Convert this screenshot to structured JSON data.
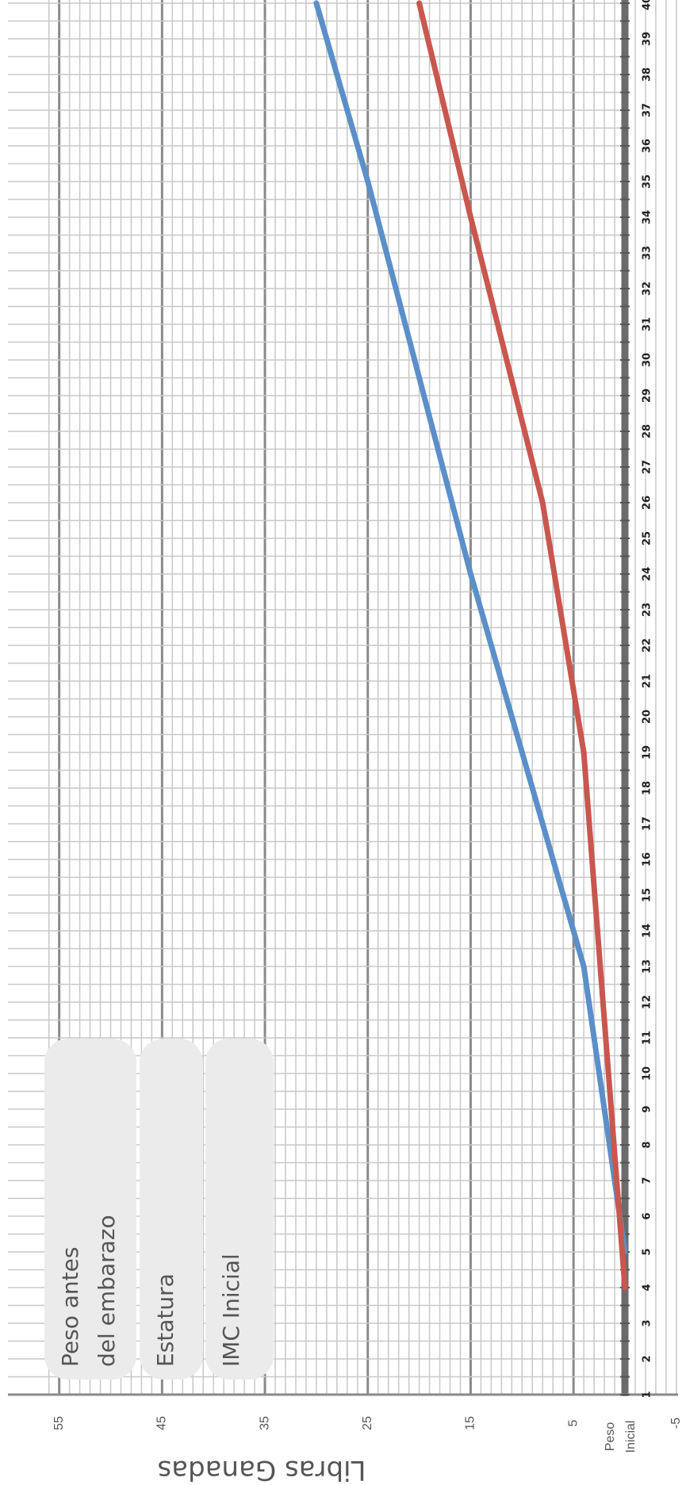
{
  "chart_data": {
    "type": "line",
    "orientation": "rotated-90",
    "ylabel": "Libras Ganadas",
    "yticks": [
      {
        "value": -5,
        "label": "-5"
      },
      {
        "value": 0,
        "label": "Peso Inicial"
      },
      {
        "value": 5,
        "label": "5"
      },
      {
        "value": 15,
        "label": "15"
      },
      {
        "value": 25,
        "label": "25"
      },
      {
        "value": 35,
        "label": "35"
      },
      {
        "value": 45,
        "label": "45"
      },
      {
        "value": 55,
        "label": "55"
      }
    ],
    "ylim": [
      -5,
      55
    ],
    "xlim": [
      1,
      40
    ],
    "x": [
      1,
      2,
      3,
      4,
      5,
      6,
      7,
      8,
      9,
      10,
      11,
      12,
      13,
      14,
      15,
      16,
      17,
      18,
      19,
      20,
      21,
      22,
      23,
      24,
      25,
      26,
      27,
      28,
      29,
      30,
      31,
      32,
      33,
      34,
      35,
      36,
      37,
      38,
      39,
      40
    ],
    "grid": true,
    "series": [
      {
        "color": "#5b8fc9",
        "points": [
          [
            5,
            0
          ],
          [
            13,
            4
          ],
          [
            24,
            15
          ],
          [
            35,
            25
          ],
          [
            40,
            30
          ]
        ]
      },
      {
        "color": "#c9574f",
        "points": [
          [
            4,
            0
          ],
          [
            19,
            4
          ],
          [
            26,
            8
          ],
          [
            34,
            15
          ],
          [
            40,
            20
          ]
        ]
      }
    ],
    "legend_fields": [
      "Peso antes del embarazo",
      "Estatura",
      "IMC Inicial"
    ]
  }
}
